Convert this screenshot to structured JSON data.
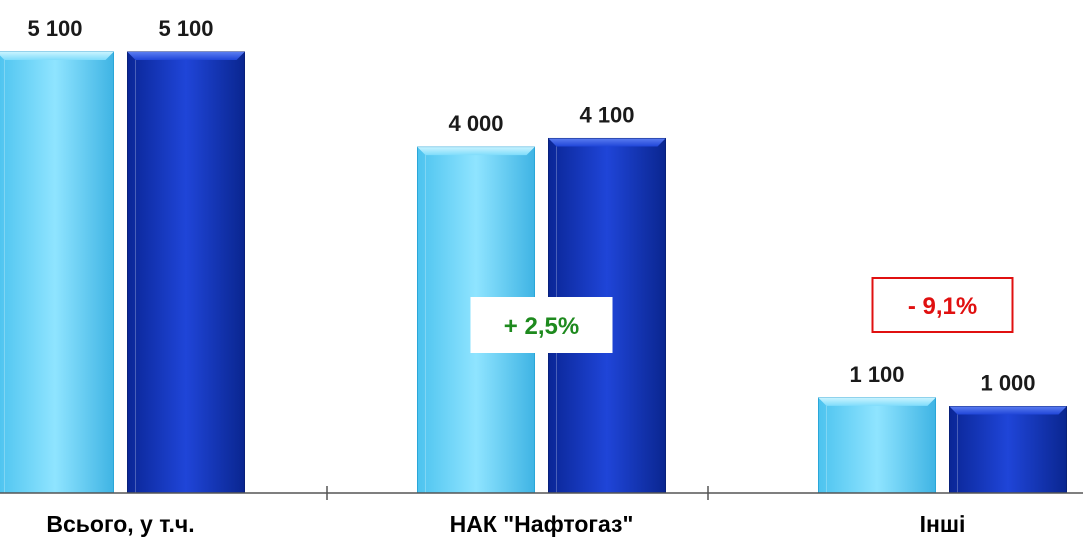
{
  "chart_data": {
    "type": "bar",
    "categories": [
      "Всього, у т.ч.",
      "НАК \"Нафтогаз\"",
      "Інші"
    ],
    "series": [
      {
        "values": [
          5100,
          4000,
          1100
        ],
        "labels": [
          "5 100",
          "4 000",
          "1 100"
        ],
        "color": "#6fd6fb"
      },
      {
        "values": [
          5100,
          4100,
          1000
        ],
        "labels": [
          "5 100",
          "4 100",
          "1 000"
        ],
        "color": "#1536c4"
      }
    ],
    "ylim": [
      0,
      5500
    ],
    "grid": false,
    "annotations": [
      {
        "text": "+ 2,5%",
        "category": "НАК \"Нафтогаз\"",
        "color": "#1e8a1e",
        "border": "#ffffff"
      },
      {
        "text": "- 9,1%",
        "category": "Інші",
        "color": "#e01010",
        "border": "#e01010"
      }
    ]
  }
}
